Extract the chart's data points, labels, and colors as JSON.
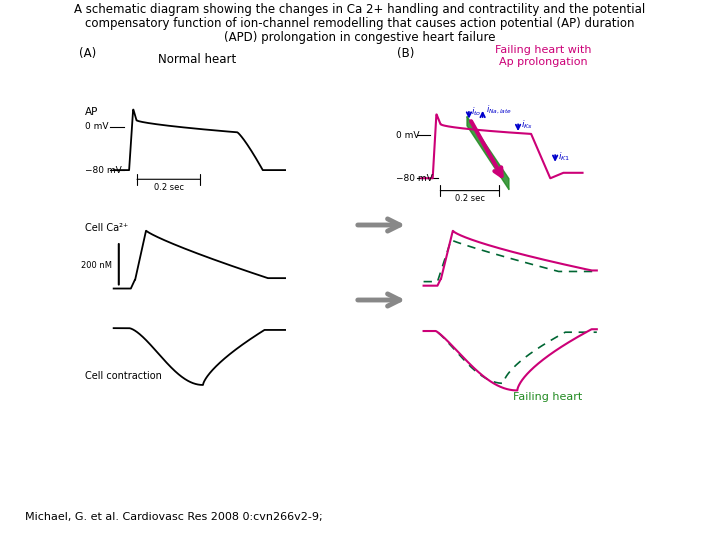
{
  "title_line1": "A schematic diagram showing the changes in Ca 2+ handling and contractility and the potential",
  "title_line2": "compensatory function of ion-channel remodelling that causes action potential (AP) duration",
  "title_line3": "(APD) prolongation in congestive heart failure",
  "citation": "Michael, G. et al. Cardiovasc Res 2008 0:cvn266v2-9;",
  "label_A": "(A)",
  "label_B": "(B)",
  "normal_heart": "Normal heart",
  "failing_heart_label": "Failing heart with\nAp prolongation",
  "failing_heart_bottom": "Failing heart",
  "AP_label": "AP",
  "cell_ca_label": "Cell Ca²⁺",
  "cell_contraction_label": "Cell contraction",
  "mv0": "0 mV",
  "mv80": "−80 mV",
  "time_scale": "0.2 sec",
  "ca_scale": "200 nM",
  "bg_color": "#ffffff",
  "black": "#000000",
  "magenta": "#cc0077",
  "green": "#228B22",
  "dark_green": "#006400",
  "teal_green": "#009966",
  "blue": "#0000cc",
  "gray": "#888888",
  "dashed_green": "#006633"
}
